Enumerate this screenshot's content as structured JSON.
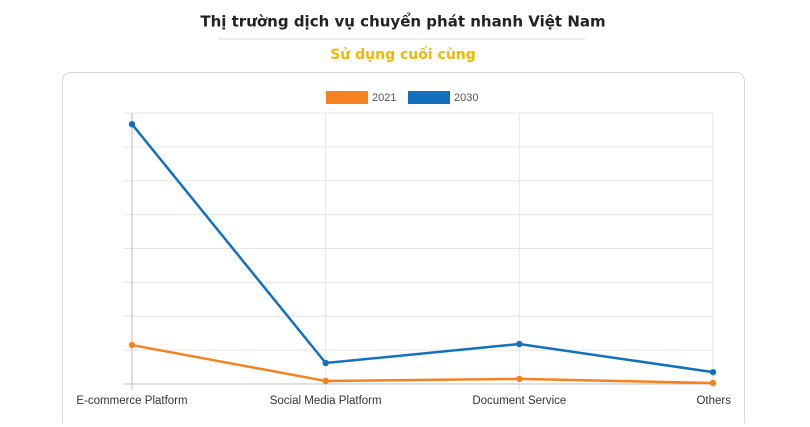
{
  "header": {
    "title": "Thị trường dịch vụ chuyển phát nhanh Việt Nam",
    "subtitle": "Sử dụng cuối cùng"
  },
  "chart_data": {
    "type": "line",
    "categories": [
      "E-commerce Platform",
      "Social Media Platform",
      "Document Service",
      "Others"
    ],
    "series": [
      {
        "name": "2021",
        "color": "#f5821f",
        "values": [
          1.15,
          0.09,
          0.15,
          0.03
        ]
      },
      {
        "name": "2030",
        "color": "#1271be",
        "values": [
          7.67,
          0.62,
          1.18,
          0.35
        ]
      }
    ],
    "ylim": [
      0,
      8
    ],
    "ygrid": [
      0,
      1,
      2,
      3,
      4,
      5,
      6,
      7,
      8
    ],
    "grid": true,
    "legend": "top"
  }
}
